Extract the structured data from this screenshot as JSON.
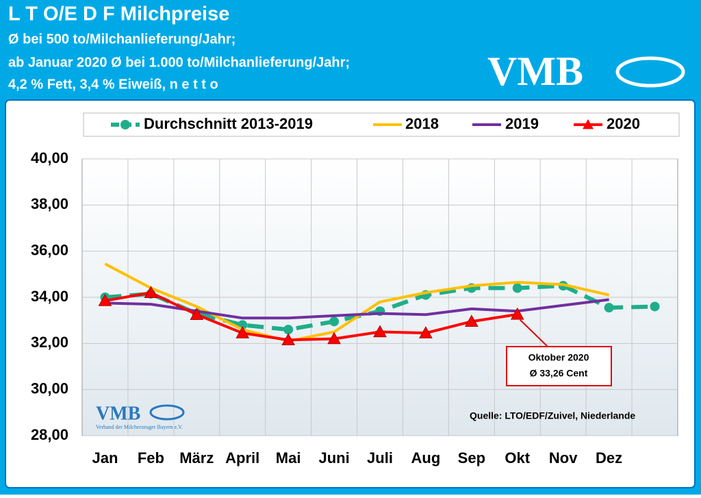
{
  "header": {
    "title": "L T O/E D F Milchpreise",
    "subtitle": [
      "Ø bei 500 to/Milchanlieferung/Jahr;",
      "ab Januar  2020 Ø bei 1.000 to/Milchanlieferung/Jahr;",
      "4,2 % Fett, 3,4 % Eiweiß, n e t t o"
    ],
    "logo": "VMB"
  },
  "chart_data": {
    "type": "line",
    "categories": [
      "Jan",
      "Feb",
      "März",
      "April",
      "Mai",
      "Juni",
      "Juli",
      "Aug",
      "Sep",
      "Okt",
      "Nov",
      "Dez",
      null
    ],
    "series": [
      {
        "name": "Durchschnitt 2013-2019",
        "color": "#1fae8a",
        "dashed": true,
        "marker": "circle",
        "values": [
          34.0,
          34.15,
          33.3,
          32.8,
          32.6,
          32.95,
          33.4,
          34.1,
          34.4,
          34.4,
          34.5,
          33.55,
          33.6
        ]
      },
      {
        "name": "2018",
        "color": "#ffc000",
        "values": [
          35.45,
          34.4,
          33.6,
          32.6,
          32.1,
          32.5,
          33.8,
          34.2,
          34.5,
          34.65,
          34.55,
          34.1,
          null
        ]
      },
      {
        "name": "2019",
        "color": "#7030a0",
        "values": [
          33.75,
          33.7,
          33.4,
          33.1,
          33.1,
          33.2,
          33.3,
          33.25,
          33.5,
          33.4,
          33.65,
          33.9,
          null
        ]
      },
      {
        "name": "2020",
        "color": "#ff0000",
        "marker": "triangle",
        "values": [
          33.85,
          34.2,
          33.25,
          32.45,
          32.15,
          32.2,
          32.5,
          32.45,
          32.95,
          33.26,
          null,
          null,
          null
        ]
      }
    ],
    "ylim": [
      28,
      40
    ],
    "yticks": [
      {
        "value": 28,
        "label": "28,00"
      },
      {
        "value": 30,
        "label": "30,00"
      },
      {
        "value": 32,
        "label": "32,00"
      },
      {
        "value": 34,
        "label": "34,00"
      },
      {
        "value": 36,
        "label": "36,00"
      },
      {
        "value": 38,
        "label": "38,00"
      },
      {
        "value": 40,
        "label": "40,00"
      }
    ],
    "grid": true,
    "legend": "top",
    "annotation": [
      "Oktober 2020",
      "Ø 33,26 Cent"
    ],
    "source": "Quelle: LTO/EDF/Zuivel, Niederlande",
    "logo_caption": "Verband der Milcherzeuger Bayern e.V."
  }
}
